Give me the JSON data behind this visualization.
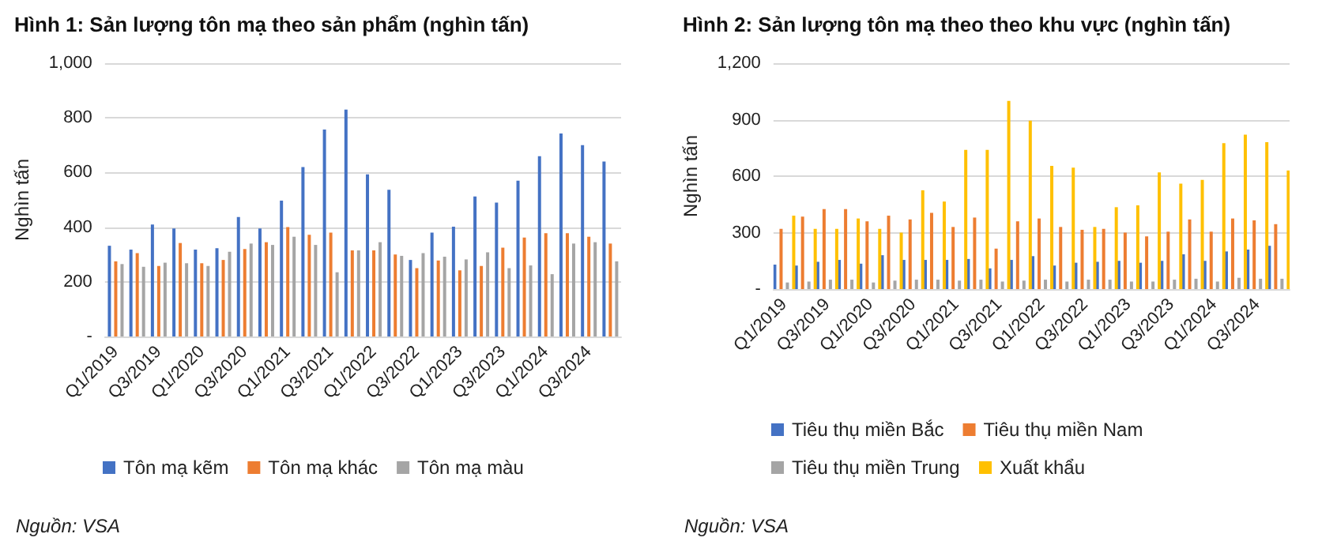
{
  "chart_data": [
    {
      "type": "bar",
      "title": "Hình 1: Sản lượng tôn mạ theo sản phẩm (nghìn tấn)",
      "ylabel": "Nghìn tấn",
      "categories": [
        "Q1/2019",
        null,
        "Q3/2019",
        null,
        "Q1/2020",
        null,
        "Q3/2020",
        null,
        "Q1/2021",
        null,
        "Q3/2021",
        null,
        "Q1/2022",
        null,
        "Q3/2022",
        null,
        "Q1/2023",
        null,
        "Q3/2023",
        null,
        "Q1/2024",
        null,
        "Q3/2024",
        null
      ],
      "series": [
        {
          "name": "Tôn mạ kẽm",
          "color": "#4472c4",
          "values": [
            332,
            318,
            410,
            395,
            318,
            323,
            437,
            395,
            497,
            620,
            757,
            830,
            593,
            537,
            280,
            380,
            402,
            512,
            490,
            570,
            660,
            743,
            700,
            640
          ]
        },
        {
          "name": "Tôn mạ khác",
          "color": "#ed7d31",
          "values": [
            275,
            305,
            258,
            342,
            268,
            280,
            320,
            345,
            400,
            372,
            380,
            315,
            315,
            300,
            250,
            278,
            242,
            258,
            325,
            362,
            378,
            378,
            365,
            340
          ]
        },
        {
          "name": "Tôn mạ màu",
          "color": "#a5a5a5",
          "values": [
            265,
            255,
            270,
            268,
            258,
            310,
            340,
            335,
            365,
            335,
            235,
            315,
            345,
            295,
            305,
            292,
            282,
            308,
            250,
            260,
            228,
            340,
            345,
            275
          ]
        }
      ],
      "ylim": [
        0,
        1000
      ],
      "yticks": [
        {
          "value": 0,
          "label": "-"
        },
        200,
        400,
        600,
        800,
        "1,000"
      ],
      "grid": "y",
      "legend": "bottom",
      "annotations": [
        "Nguồn: VSA"
      ]
    },
    {
      "type": "bar",
      "title": "Hình 2: Sản lượng tôn mạ theo theo khu vực (nghìn tấn)",
      "ylabel": "Nghìn tấn",
      "categories": [
        "Q1/2019",
        null,
        "Q3/2019",
        null,
        "Q1/2020",
        null,
        "Q3/2020",
        null,
        "Q1/2021",
        null,
        "Q3/2021",
        null,
        "Q1/2022",
        null,
        "Q3/2022",
        null,
        "Q1/2023",
        null,
        "Q3/2023",
        null,
        "Q1/2024",
        null,
        "Q3/2024",
        null
      ],
      "series": [
        {
          "name": "Tiêu thụ miền Bắc",
          "color": "#4472c4",
          "values": [
            130,
            125,
            145,
            155,
            135,
            180,
            155,
            155,
            155,
            160,
            110,
            155,
            175,
            125,
            140,
            145,
            150,
            140,
            150,
            185,
            150,
            200,
            210,
            230
          ]
        },
        {
          "name": "Tiêu thụ miền Nam",
          "color": "#ed7d31",
          "values": [
            320,
            385,
            425,
            425,
            360,
            390,
            370,
            405,
            330,
            380,
            215,
            360,
            375,
            330,
            315,
            320,
            300,
            280,
            305,
            370,
            305,
            375,
            365,
            345
          ]
        },
        {
          "name": "Tiêu thụ miền Trung",
          "color": "#a5a5a5",
          "values": [
            35,
            40,
            50,
            50,
            35,
            45,
            50,
            50,
            45,
            50,
            40,
            45,
            50,
            40,
            50,
            50,
            40,
            40,
            50,
            55,
            40,
            60,
            55,
            55
          ]
        },
        {
          "name": "Xuất khẩu",
          "color": "#ffc000",
          "values": [
            390,
            320,
            320,
            375,
            320,
            300,
            525,
            465,
            740,
            740,
            1000,
            895,
            655,
            645,
            330,
            435,
            445,
            620,
            560,
            580,
            775,
            820,
            780,
            630
          ]
        }
      ],
      "ylim": [
        0,
        1200
      ],
      "yticks": [
        {
          "value": 0,
          "label": "-"
        },
        300,
        600,
        900,
        "1,200"
      ],
      "grid": "y",
      "legend": "bottom",
      "annotations": [
        "Nguồn: VSA"
      ]
    }
  ]
}
